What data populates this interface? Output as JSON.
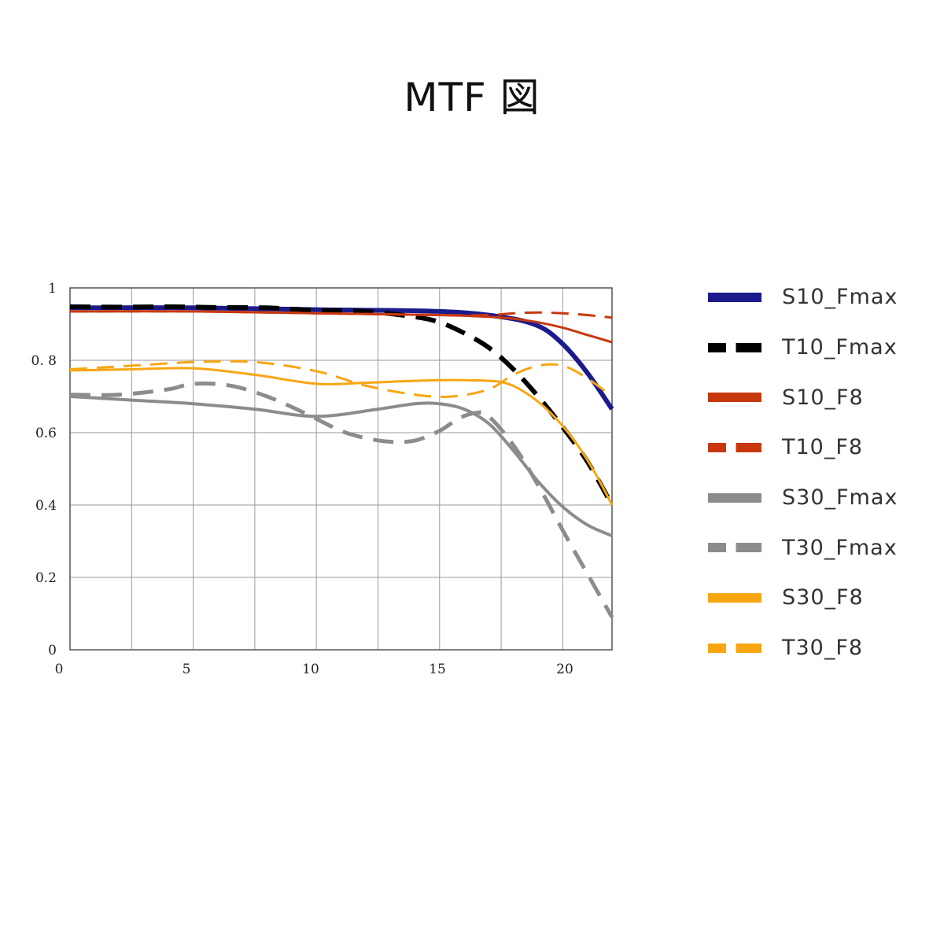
{
  "title": "MTF 図",
  "chart_data": {
    "type": "line",
    "title": "MTF 図",
    "xlabel": "",
    "ylabel": "",
    "xlim": [
      0,
      22
    ],
    "ylim": [
      0,
      1
    ],
    "x_ticks": [
      "0",
      "5",
      "10",
      "15",
      "20"
    ],
    "y_ticks": [
      "0",
      "0.2",
      "0.4",
      "0.6",
      "0. 8",
      "1"
    ],
    "grid": true,
    "legend_position": "right",
    "series": [
      {
        "name": "S10_Fmax",
        "color": "#1b1b8c",
        "dash": false,
        "width": 6,
        "x": [
          0,
          5,
          10,
          15,
          17.5,
          19,
          20,
          21,
          22
        ],
        "y": [
          0.945,
          0.945,
          0.94,
          0.935,
          0.92,
          0.895,
          0.845,
          0.765,
          0.665
        ]
      },
      {
        "name": "T10_Fmax",
        "color": "#000000",
        "dash": true,
        "width": 6,
        "x": [
          0,
          2,
          4,
          6,
          8,
          10,
          12,
          14,
          15,
          16,
          17,
          18,
          19,
          20,
          21,
          22
        ],
        "y": [
          0.948,
          0.947,
          0.948,
          0.946,
          0.945,
          0.938,
          0.935,
          0.92,
          0.905,
          0.875,
          0.835,
          0.775,
          0.7,
          0.615,
          0.52,
          0.4
        ]
      },
      {
        "name": "S10_F8",
        "color": "#c8380e",
        "dash": false,
        "width": 3,
        "x": [
          0,
          5,
          10,
          15,
          17,
          18,
          19,
          20,
          21,
          22
        ],
        "y": [
          0.935,
          0.935,
          0.93,
          0.925,
          0.92,
          0.915,
          0.905,
          0.89,
          0.87,
          0.85
        ]
      },
      {
        "name": "T10_F8",
        "color": "#c8380e",
        "dash": true,
        "width": 3,
        "x": [
          0,
          5,
          10,
          15,
          17,
          18,
          19,
          20,
          21,
          22
        ],
        "y": [
          0.935,
          0.935,
          0.93,
          0.925,
          0.925,
          0.93,
          0.932,
          0.93,
          0.925,
          0.918
        ]
      },
      {
        "name": "S30_Fmax",
        "color": "#8c8c8c",
        "dash": false,
        "width": 4,
        "x": [
          0,
          2.5,
          5,
          7.5,
          10,
          12.5,
          14,
          15,
          16,
          17,
          18,
          19,
          20,
          21,
          22
        ],
        "y": [
          0.7,
          0.69,
          0.68,
          0.665,
          0.645,
          0.665,
          0.68,
          0.68,
          0.665,
          0.625,
          0.55,
          0.465,
          0.395,
          0.345,
          0.315
        ]
      },
      {
        "name": "T30_Fmax",
        "color": "#8c8c8c",
        "dash": true,
        "width": 5,
        "x": [
          0,
          2,
          4,
          5,
          6.5,
          8,
          9.5,
          11,
          12,
          13,
          14,
          15,
          15.8,
          16.5,
          17,
          18,
          19,
          20,
          21,
          22
        ],
        "y": [
          0.705,
          0.705,
          0.72,
          0.735,
          0.73,
          0.7,
          0.655,
          0.605,
          0.585,
          0.575,
          0.578,
          0.605,
          0.64,
          0.655,
          0.645,
          0.565,
          0.455,
          0.33,
          0.21,
          0.09
        ]
      },
      {
        "name": "S30_F8",
        "color": "#f7a612",
        "dash": false,
        "width": 3,
        "x": [
          0,
          2.5,
          5,
          7.5,
          10,
          12,
          13.5,
          15,
          16,
          17.5,
          18.5,
          19.5,
          20.5,
          21.3,
          22
        ],
        "y": [
          0.772,
          0.775,
          0.778,
          0.76,
          0.735,
          0.738,
          0.742,
          0.745,
          0.745,
          0.74,
          0.71,
          0.655,
          0.575,
          0.49,
          0.4
        ]
      },
      {
        "name": "T30_F8",
        "color": "#f7a612",
        "dash": true,
        "width": 3,
        "x": [
          0,
          2.5,
          5,
          7.5,
          10,
          12,
          14,
          15.5,
          17,
          18,
          19,
          20,
          21,
          22
        ],
        "y": [
          0.775,
          0.785,
          0.795,
          0.795,
          0.77,
          0.73,
          0.705,
          0.7,
          0.72,
          0.76,
          0.785,
          0.785,
          0.75,
          0.7
        ]
      }
    ]
  }
}
